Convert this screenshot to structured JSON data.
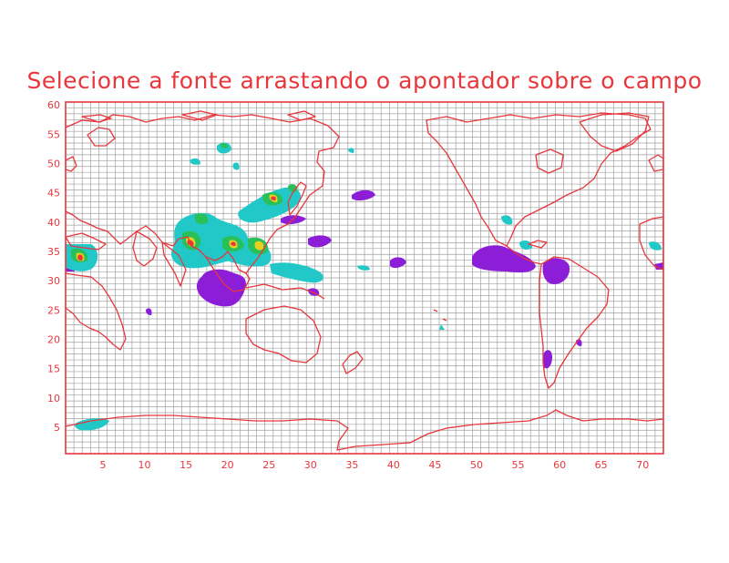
{
  "title": "Selecione a fonte arrastando o apontador sobre o campo",
  "grid": {
    "x_min": 1,
    "x_max": 72,
    "y_min": 1,
    "y_max": 60,
    "x_ticks": [
      "5",
      "10",
      "15",
      "20",
      "25",
      "30",
      "35",
      "40",
      "45",
      "50",
      "55",
      "60",
      "65",
      "70"
    ],
    "y_ticks": [
      "5",
      "10",
      "15",
      "20",
      "25",
      "30",
      "35",
      "40",
      "45",
      "50",
      "55",
      "60"
    ],
    "show_grid": true
  },
  "colors": {
    "frame": "#e8363c",
    "grid": "#a0a0a0",
    "coastline": "#e8363c",
    "contour_low": "#22c8c8",
    "contour_mid": "#29c05a",
    "contour_high": "#e8d020",
    "contour_peak": "#e8363c",
    "contour_purple": "#8c1ed8"
  }
}
